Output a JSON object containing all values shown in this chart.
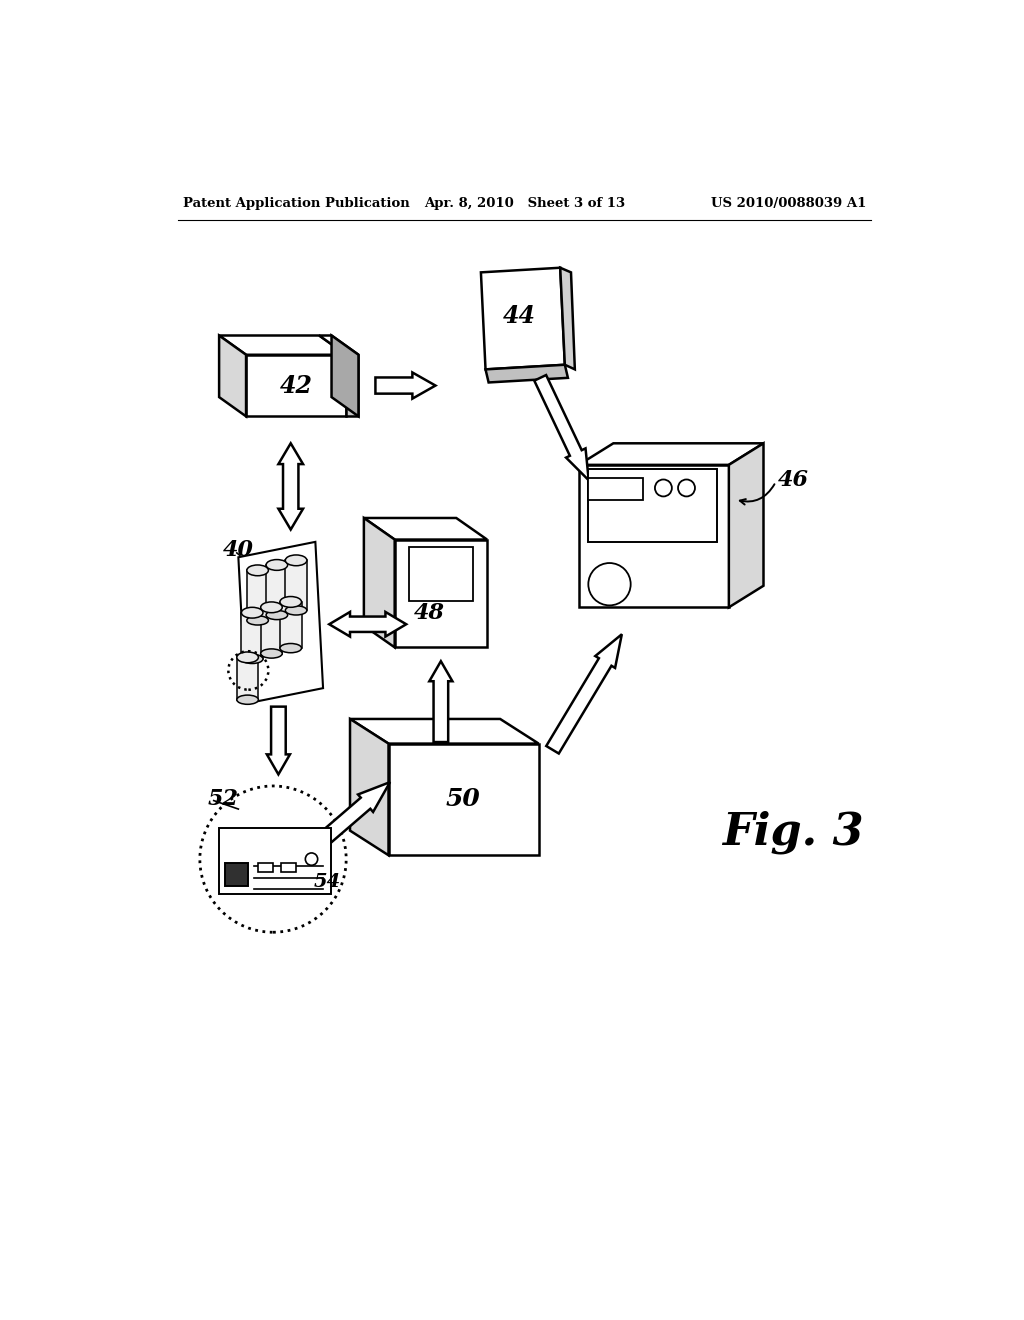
{
  "bg_color": "#ffffff",
  "header_left": "Patent Application Publication",
  "header_mid": "Apr. 8, 2010   Sheet 3 of 13",
  "header_right": "US 2010/0088039 A1",
  "fig_label": "Fig. 3"
}
